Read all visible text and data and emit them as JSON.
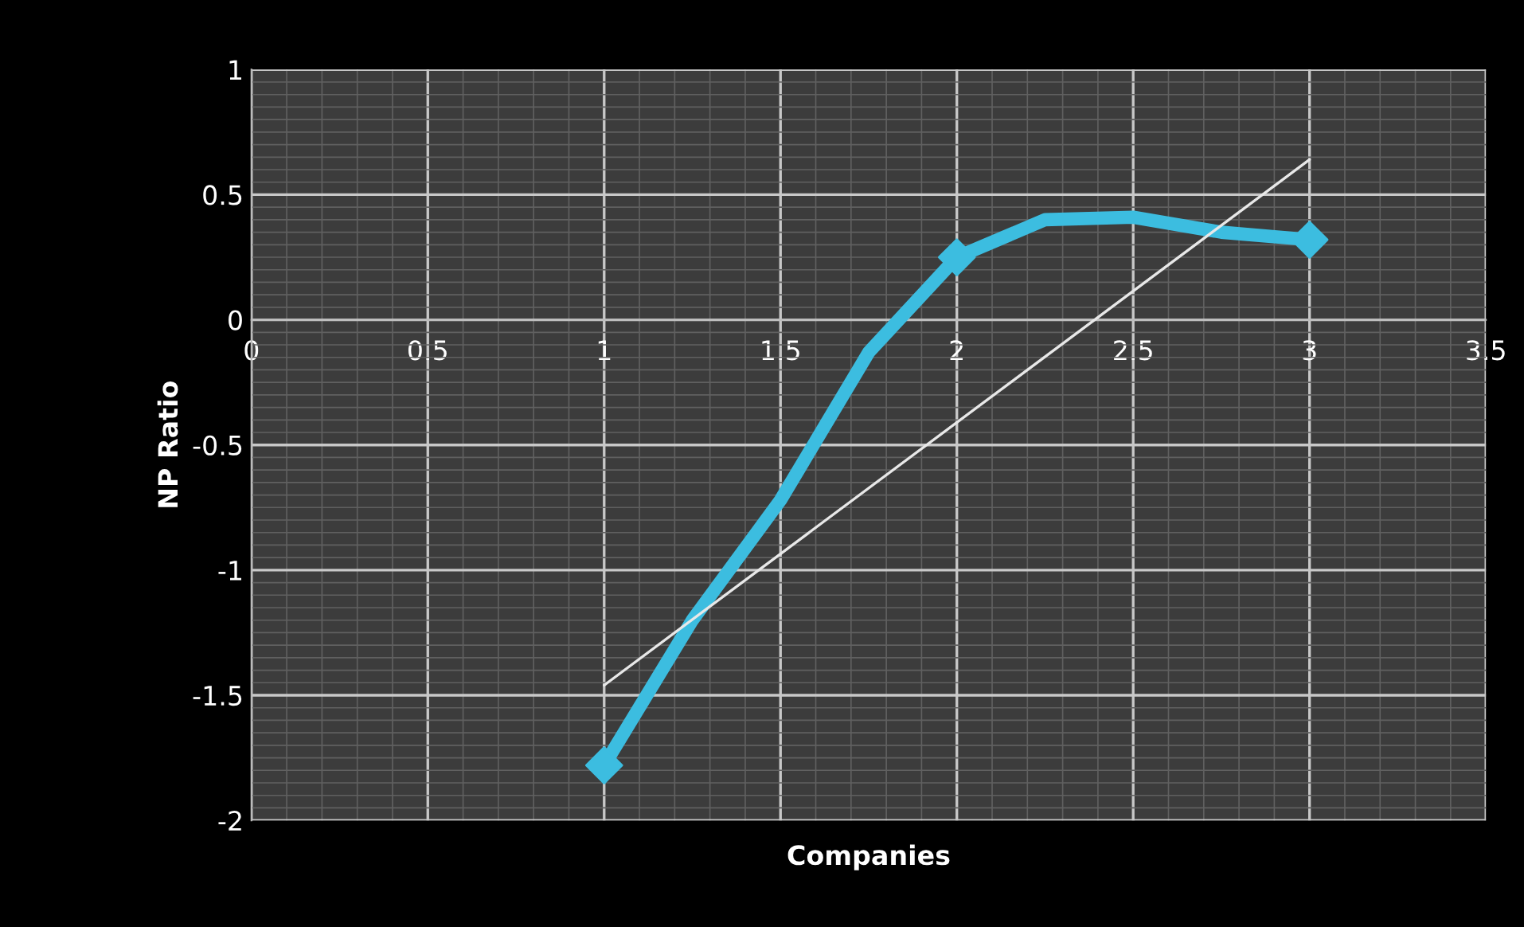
{
  "chart_data": {
    "type": "line",
    "xlabel": "Companies",
    "ylabel": "NP Ratio",
    "xlim": [
      0,
      3.5
    ],
    "xticks": [
      0,
      0.5,
      1,
      1.5,
      2,
      2.5,
      3,
      3.5
    ],
    "ylim": [
      -2,
      1
    ],
    "yticks": [
      -2,
      -1.5,
      -1,
      -0.5,
      0,
      0.5,
      1
    ],
    "grid": true,
    "marker": "diamond",
    "line_style": "solid",
    "series": [
      {
        "color": "#3cbde0",
        "x": [
          1,
          1.25,
          1.5,
          1.75,
          2,
          2.25,
          2.5,
          2.75,
          3
        ],
        "values": [
          -1.78,
          -1.2,
          -0.72,
          -0.13,
          0.25,
          0.4,
          0.41,
          0.35,
          0.32
        ],
        "marker": "none"
      },
      {
        "type": "scatter",
        "color": "#3cbde0",
        "x": [
          1,
          2,
          3
        ],
        "values": [
          -1.78,
          0.25,
          0.32
        ]
      },
      {
        "color": "#e8e8e8",
        "x": [
          1,
          3
        ],
        "values": [
          -1.46,
          0.64
        ],
        "marker": "none"
      }
    ]
  }
}
